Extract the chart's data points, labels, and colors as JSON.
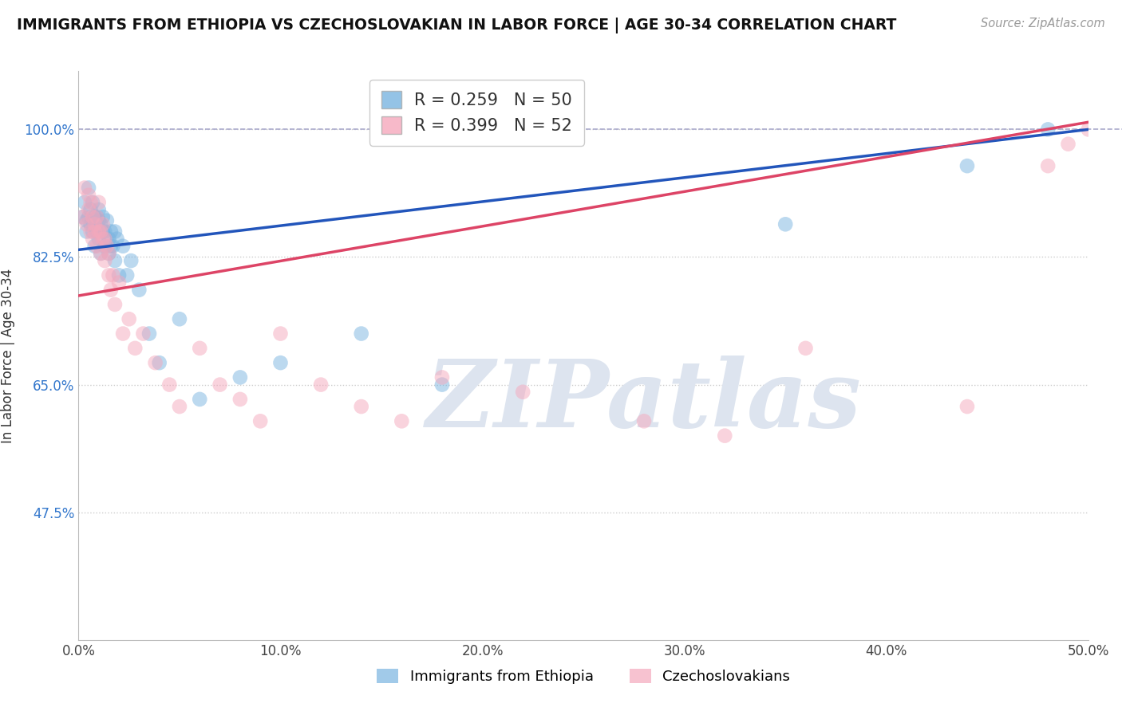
{
  "title": "IMMIGRANTS FROM ETHIOPIA VS CZECHOSLOVAKIAN IN LABOR FORCE | AGE 30-34 CORRELATION CHART",
  "source": "Source: ZipAtlas.com",
  "ylabel": "In Labor Force | Age 30-34",
  "xlim": [
    0.0,
    0.5
  ],
  "ylim": [
    0.3,
    1.08
  ],
  "yticks": [
    0.475,
    0.65,
    0.825,
    1.0
  ],
  "ytick_labels": [
    "47.5%",
    "65.0%",
    "82.5%",
    "100.0%"
  ],
  "xticks": [
    0.0,
    0.1,
    0.2,
    0.3,
    0.4,
    0.5
  ],
  "xtick_labels": [
    "0.0%",
    "10.0%",
    "20.0%",
    "30.0%",
    "40.0%",
    "50.0%"
  ],
  "blue_R": 0.259,
  "blue_N": 50,
  "pink_R": 0.399,
  "pink_N": 52,
  "blue_color": "#7ab4e0",
  "pink_color": "#f5a8bc",
  "blue_line_color": "#2255bb",
  "pink_line_color": "#dd4466",
  "watermark": "ZIPatlas",
  "watermark_color": "#dde4ef",
  "legend1_label": "Immigrants from Ethiopia",
  "legend2_label": "Czechoslovakians",
  "blue_x": [
    0.002,
    0.003,
    0.004,
    0.004,
    0.005,
    0.005,
    0.006,
    0.006,
    0.007,
    0.007,
    0.007,
    0.008,
    0.008,
    0.008,
    0.009,
    0.009,
    0.01,
    0.01,
    0.01,
    0.011,
    0.011,
    0.012,
    0.012,
    0.013,
    0.013,
    0.014,
    0.015,
    0.015,
    0.016,
    0.016,
    0.017,
    0.018,
    0.018,
    0.019,
    0.02,
    0.022,
    0.024,
    0.026,
    0.03,
    0.035,
    0.04,
    0.05,
    0.06,
    0.08,
    0.1,
    0.14,
    0.18,
    0.35,
    0.44,
    0.48
  ],
  "blue_y": [
    0.88,
    0.9,
    0.875,
    0.86,
    0.88,
    0.92,
    0.87,
    0.89,
    0.9,
    0.875,
    0.86,
    0.88,
    0.84,
    0.87,
    0.86,
    0.88,
    0.875,
    0.85,
    0.89,
    0.83,
    0.87,
    0.86,
    0.88,
    0.84,
    0.86,
    0.875,
    0.83,
    0.85,
    0.84,
    0.86,
    0.84,
    0.86,
    0.82,
    0.85,
    0.8,
    0.84,
    0.8,
    0.82,
    0.78,
    0.72,
    0.68,
    0.74,
    0.63,
    0.66,
    0.68,
    0.72,
    0.65,
    0.87,
    0.95,
    1.0
  ],
  "pink_x": [
    0.002,
    0.003,
    0.004,
    0.005,
    0.005,
    0.006,
    0.006,
    0.007,
    0.007,
    0.008,
    0.008,
    0.009,
    0.009,
    0.01,
    0.01,
    0.011,
    0.011,
    0.012,
    0.012,
    0.013,
    0.013,
    0.014,
    0.015,
    0.015,
    0.016,
    0.017,
    0.018,
    0.02,
    0.022,
    0.025,
    0.028,
    0.032,
    0.038,
    0.045,
    0.05,
    0.06,
    0.07,
    0.08,
    0.09,
    0.1,
    0.12,
    0.14,
    0.16,
    0.18,
    0.22,
    0.28,
    0.32,
    0.36,
    0.44,
    0.48,
    0.49,
    0.5
  ],
  "pink_y": [
    0.88,
    0.92,
    0.87,
    0.89,
    0.91,
    0.86,
    0.9,
    0.88,
    0.85,
    0.87,
    0.86,
    0.88,
    0.84,
    0.86,
    0.9,
    0.83,
    0.86,
    0.85,
    0.87,
    0.82,
    0.85,
    0.84,
    0.8,
    0.83,
    0.78,
    0.8,
    0.76,
    0.79,
    0.72,
    0.74,
    0.7,
    0.72,
    0.68,
    0.65,
    0.62,
    0.7,
    0.65,
    0.63,
    0.6,
    0.72,
    0.65,
    0.62,
    0.6,
    0.66,
    0.64,
    0.6,
    0.58,
    0.7,
    0.62,
    0.95,
    0.98,
    1.0
  ]
}
